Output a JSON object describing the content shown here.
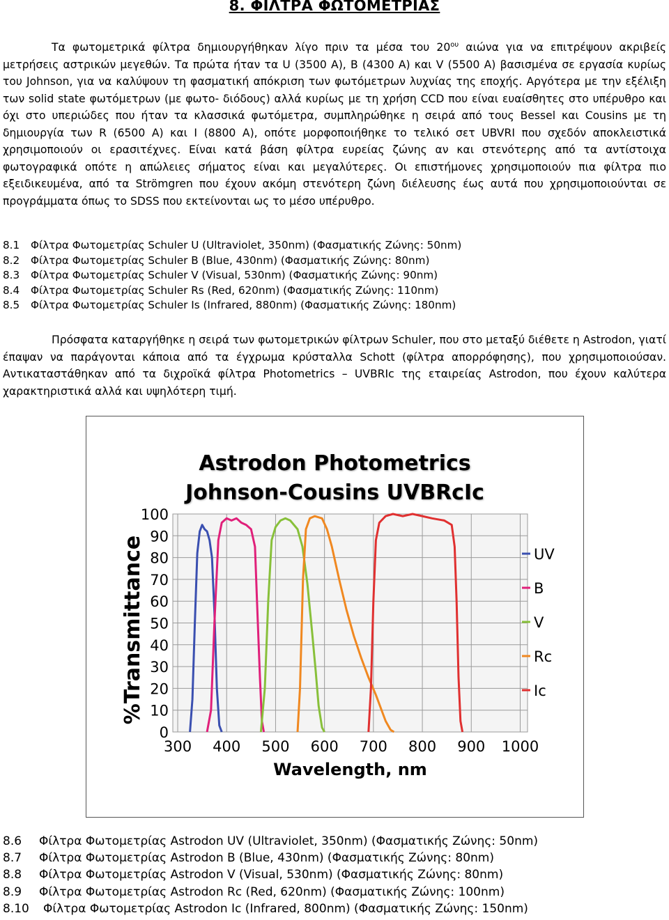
{
  "title": "8.   ΦΙΛΤΡΑ ΦΩΤΟΜΕΤΡΙΑΣ",
  "intro": {
    "p1_before_sup": "Τα φωτομετρικά φίλτρα δημιουργήθηκαν λίγο πριν τα μέσα του 20",
    "p1_sup": "ου",
    "p1_after_sup": " αιώνα για να επιτρέψουν ακριβείς μετρήσεις αστρικών μεγεθών.  Τα πρώτα ήταν τα U (3500 A), B (4300 A) και V (5500 A) βασισμένα σε εργασία κυρίως του Johnson, για να καλύψουν τη φασματική απόκριση των φωτόμετρων λυχνίας της εποχής. Αργότερα με την εξέλιξη των solid state φωτόμετρων (με φωτο- διόδους) αλλά κυρίως με τη χρήση CCD που είναι ευαίσθητες στο υπέρυθρο και όχι στο υπεριώδες που ήταν τα κλασσικά φωτόμετρα, συμπληρώθηκε η σειρά από τους Bessel και Cousins με τη δημιουργία των R (6500 A) και I (8800 A), οπότε μορφοποιήθηκε το τελικό σετ UBVRI που σχεδόν αποκλειστικά χρησιμοποιούν οι ερασιτέχνες. Είναι κατά βάση φίλτρα ευρείας ζώνης αν και στενότερης από τα αντίστοιχα φωτογραφικά οπότε η απώλειες σήματος είναι και μεγαλύτερες. Οι επιστήμονες χρησιμοποιούν πια φίλτρα πιο εξειδικευμένα, από τα Strömgren που έχουν ακόμη στενότερη ζώνη διέλευσης έως αυτά που χρησιμοποιούνται σε προγράμματα όπως το SDSS που εκτείνονται ως το μέσο υπέρυθρο."
  },
  "schuler_list": [
    {
      "num": "8.1",
      "text": "Φίλτρα Φωτομετρίας Schuler U (Ultraviolet, 350nm) (Φασματικής Ζώνης: 50nm)"
    },
    {
      "num": "8.2",
      "text": "Φίλτρα Φωτομετρίας Schuler B (Blue, 430nm) (Φασματικής Ζώνης: 80nm)"
    },
    {
      "num": "8.3",
      "text": "Φίλτρα Φωτομετρίας Schuler V (Visual, 530nm) (Φασματικής Ζώνης: 90nm)"
    },
    {
      "num": "8.4",
      "text": "Φίλτρα Φωτομετρίας Schuler Rs (Red, 620nm) (Φασματικής Ζώνης: 110nm)"
    },
    {
      "num": "8.5",
      "text": "Φίλτρα Φωτομετρίας Schuler Is (Infrared, 880nm) (Φασματικής Ζώνης: 180nm)"
    }
  ],
  "para2": "Πρόσφατα  καταργήθηκε η σειρά των φωτομετρικών φίλτρων Schuler, που στο μεταξύ διέθετε η Astrodon, γιατί έπαψαν να παράγονται κάποια από τα έγχρωμα κρύσταλλα Schott (φίλτρα απορρόφησης), που χρησιμοποιούσαν. Αντικαταστάθηκαν από τα διχροϊκά φίλτρα Photometrics – UVBRIc της εταιρείας Astrodon, που έχουν καλύτερα χαρακτηριστικά αλλά και υψηλότερη τιμή.",
  "astrodon_list": [
    {
      "num": "8.6",
      "text": "Φίλτρα Φωτομετρίας Astrodon UV (Ultraviolet, 350nm) (Φασματικής Ζώνης: 50nm)"
    },
    {
      "num": "8.7",
      "text": "Φίλτρα Φωτομετρίας Astrodon B (Blue, 430nm) (Φασματικής Ζώνης: 80nm)"
    },
    {
      "num": "8.8",
      "text": "Φίλτρα Φωτομετρίας Astrodon V (Visual, 530nm) (Φασματικής Ζώνης: 80nm)"
    },
    {
      "num": "8.9",
      "text": "Φίλτρα Φωτομετρίας Astrodon Rc (Red, 620nm) (Φασματικής Ζώνης: 100nm)"
    },
    {
      "num": "8.10",
      "text": "Φίλτρα Φωτομετρίας Astrodon Ic (Infrared, 800nm) (Φασματικής Ζώνης: 150nm)"
    }
  ],
  "chart_data": {
    "type": "line",
    "title_line1": "Astrodon Photometrics",
    "title_line2": "Johnson-Cousins UVBRcIc",
    "xlabel": "Wavelength, nm",
    "ylabel": "%Transmittance",
    "xlim": [
      290,
      1015
    ],
    "ylim": [
      0,
      100
    ],
    "x_ticks": [
      300,
      400,
      500,
      600,
      700,
      800,
      900,
      1000
    ],
    "y_ticks": [
      0,
      10,
      20,
      30,
      40,
      50,
      60,
      70,
      80,
      90,
      100
    ],
    "grid": true,
    "legend_position": "right",
    "series": [
      {
        "name": "UV",
        "color": "#3a4fb0",
        "points": [
          [
            325,
            0
          ],
          [
            330,
            15
          ],
          [
            335,
            50
          ],
          [
            340,
            82
          ],
          [
            345,
            92
          ],
          [
            350,
            95
          ],
          [
            355,
            93
          ],
          [
            360,
            92
          ],
          [
            365,
            88
          ],
          [
            370,
            80
          ],
          [
            375,
            55
          ],
          [
            380,
            20
          ],
          [
            385,
            3
          ],
          [
            390,
            0
          ]
        ]
      },
      {
        "name": "B",
        "color": "#e0207a",
        "points": [
          [
            360,
            0
          ],
          [
            368,
            10
          ],
          [
            375,
            50
          ],
          [
            383,
            88
          ],
          [
            390,
            96
          ],
          [
            400,
            98
          ],
          [
            410,
            97
          ],
          [
            420,
            98
          ],
          [
            430,
            96
          ],
          [
            440,
            95
          ],
          [
            450,
            93
          ],
          [
            458,
            85
          ],
          [
            462,
            60
          ],
          [
            468,
            25
          ],
          [
            472,
            5
          ],
          [
            476,
            0
          ]
        ]
      },
      {
        "name": "V",
        "color": "#88c03a",
        "points": [
          [
            470,
            0
          ],
          [
            478,
            20
          ],
          [
            485,
            60
          ],
          [
            492,
            88
          ],
          [
            500,
            94
          ],
          [
            510,
            97
          ],
          [
            520,
            98
          ],
          [
            530,
            97
          ],
          [
            545,
            93
          ],
          [
            555,
            85
          ],
          [
            565,
            68
          ],
          [
            575,
            45
          ],
          [
            582,
            28
          ],
          [
            588,
            12
          ],
          [
            595,
            2
          ],
          [
            600,
            0
          ]
        ]
      },
      {
        "name": "Rc",
        "color": "#f08820",
        "points": [
          [
            545,
            0
          ],
          [
            550,
            20
          ],
          [
            556,
            70
          ],
          [
            562,
            93
          ],
          [
            570,
            98
          ],
          [
            580,
            99
          ],
          [
            595,
            98
          ],
          [
            605,
            93
          ],
          [
            615,
            85
          ],
          [
            630,
            70
          ],
          [
            645,
            56
          ],
          [
            660,
            44
          ],
          [
            675,
            34
          ],
          [
            690,
            25
          ],
          [
            705,
            17
          ],
          [
            715,
            11
          ],
          [
            725,
            5
          ],
          [
            735,
            1
          ],
          [
            742,
            0
          ]
        ]
      },
      {
        "name": "Ic",
        "color": "#e03030",
        "points": [
          [
            690,
            0
          ],
          [
            695,
            20
          ],
          [
            700,
            60
          ],
          [
            705,
            88
          ],
          [
            712,
            96
          ],
          [
            725,
            99
          ],
          [
            740,
            100
          ],
          [
            760,
            99
          ],
          [
            780,
            100
          ],
          [
            800,
            99
          ],
          [
            820,
            98
          ],
          [
            845,
            97
          ],
          [
            860,
            95
          ],
          [
            866,
            85
          ],
          [
            870,
            60
          ],
          [
            874,
            25
          ],
          [
            878,
            5
          ],
          [
            882,
            0
          ]
        ]
      }
    ]
  }
}
